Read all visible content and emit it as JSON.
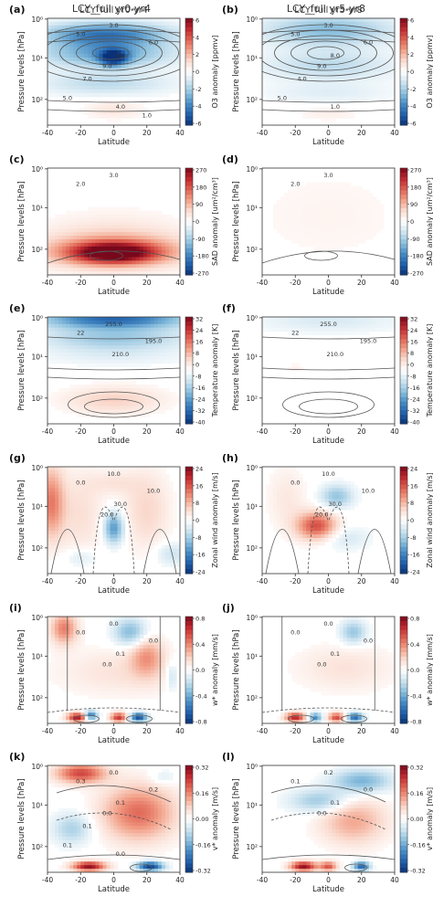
{
  "col_titles": [
    "LCY_full yr0-yr4",
    "LCY_full yr5-yr8"
  ],
  "chart_data": [
    {
      "type": "heatmap",
      "letter": "(a)",
      "title": "LCY_full yr0-yr4",
      "xlabel": "Latitude",
      "ylabel": "Pressure levels [hPa]",
      "xticks": [
        "-40",
        "-20",
        "0",
        "20",
        "40"
      ],
      "yticks": [
        "10⁰",
        "10¹",
        "10²"
      ],
      "cbar_label": "O3 anomaly [ppmv]",
      "cbar_ticks": [
        "6",
        "4",
        "2",
        "0",
        "-2",
        "-4",
        "-6"
      ],
      "cmin": -6,
      "cmax": 6,
      "contour_labels": [
        "3.0",
        "5.0",
        "6.0",
        "8.0",
        "9.0",
        "7.0",
        "5.0",
        "4.0",
        "1.0"
      ],
      "blobs": [
        {
          "x": -5,
          "y": 0.4,
          "rx": 38,
          "ry": 0.3,
          "v": -4
        },
        {
          "x": -5,
          "y": 0.9,
          "rx": 40,
          "ry": 0.35,
          "v": -3
        },
        {
          "x": -5,
          "y": 1.65,
          "rx": 40,
          "ry": 0.3,
          "v": -1.5
        },
        {
          "x": 0,
          "y": 2.3,
          "rx": 18,
          "ry": 0.25,
          "v": 0.8
        },
        {
          "x": 0,
          "y": 1.0,
          "rx": 8,
          "ry": 0.2,
          "v": -5
        }
      ]
    },
    {
      "type": "heatmap",
      "letter": "(b)",
      "title": "LCY_full yr5-yr8",
      "xlabel": "Latitude",
      "ylabel": "Pressure levels [hPa]",
      "xticks": [
        "-40",
        "-20",
        "0",
        "20",
        "40"
      ],
      "yticks": [
        "10⁰",
        "10¹",
        "10²"
      ],
      "cbar_label": "O3 anomaly [ppmv]",
      "cbar_ticks": [
        "6",
        "4",
        "2",
        "0",
        "-2",
        "-4",
        "-6"
      ],
      "cmin": -6,
      "cmax": 6,
      "contour_labels": [
        "3.0",
        "5.0",
        "6.0",
        "8.0",
        "9.0",
        "4.0",
        "5.0",
        "1.0"
      ],
      "blobs": [
        {
          "x": 0,
          "y": 0.3,
          "rx": 40,
          "ry": 0.4,
          "v": -2.5
        },
        {
          "x": 0,
          "y": 1.2,
          "rx": 40,
          "ry": 0.4,
          "v": -1.5
        },
        {
          "x": 0,
          "y": 1.9,
          "rx": 40,
          "ry": 0.25,
          "v": -0.7
        },
        {
          "x": 0,
          "y": 2.4,
          "rx": 20,
          "ry": 0.2,
          "v": 0.5
        }
      ]
    },
    {
      "type": "heatmap",
      "letter": "(c)",
      "title": "",
      "xlabel": "Latitude",
      "ylabel": "Pressure levels [hPa]",
      "xticks": [
        "-40",
        "-20",
        "0",
        "20",
        "40"
      ],
      "yticks": [
        "10⁰",
        "10¹",
        "10²"
      ],
      "cbar_label": "SAD anomaly [um²/cm³]",
      "cbar_ticks": [
        "270",
        "180",
        "90",
        "0",
        "-90",
        "-180",
        "-270"
      ],
      "cmin": -270,
      "cmax": 270,
      "contour_labels": [
        "3.0",
        "2.0"
      ],
      "blobs": [
        {
          "x": 0,
          "y": 1.8,
          "rx": 45,
          "ry": 0.7,
          "v": 40
        },
        {
          "x": 0,
          "y": 2.1,
          "rx": 42,
          "ry": 0.4,
          "v": 120
        },
        {
          "x": 0,
          "y": 2.15,
          "rx": 25,
          "ry": 0.25,
          "v": 220
        }
      ]
    },
    {
      "type": "heatmap",
      "letter": "(d)",
      "title": "",
      "xlabel": "Latitude",
      "ylabel": "Pressure levels [hPa]",
      "xticks": [
        "-40",
        "-20",
        "0",
        "20",
        "40"
      ],
      "yticks": [
        "10⁰",
        "10¹",
        "10²"
      ],
      "cbar_label": "SAD anomaly [um²/cm³]",
      "cbar_ticks": [
        "270",
        "180",
        "90",
        "0",
        "-90",
        "-180",
        "-270"
      ],
      "cmin": -270,
      "cmax": 270,
      "contour_labels": [
        "3.0",
        "2.0"
      ],
      "blobs": [
        {
          "x": 0,
          "y": 1.2,
          "rx": 60,
          "ry": 1.5,
          "v": 15
        }
      ]
    },
    {
      "type": "heatmap",
      "letter": "(e)",
      "title": "",
      "xlabel": "Latitude",
      "ylabel": "Pressure levels [hPa]",
      "xticks": [
        "-40",
        "-20",
        "0",
        "20",
        "40"
      ],
      "yticks": [
        "10⁰",
        "10¹",
        "10²"
      ],
      "cbar_label": "Temperature anomaly [K]",
      "cbar_ticks": [
        "32",
        "24",
        "16",
        "8",
        "0",
        "-8",
        "-16",
        "-24",
        "-32",
        "-40"
      ],
      "cmin": -40,
      "cmax": 32,
      "contour_labels": [
        "255.0",
        "22",
        "195.0",
        "210.0"
      ],
      "blobs": [
        {
          "x": 0,
          "y": 0.05,
          "rx": 45,
          "ry": 0.25,
          "v": -30
        },
        {
          "x": 0,
          "y": 0.55,
          "rx": 45,
          "ry": 0.3,
          "v": -14
        },
        {
          "x": 0,
          "y": 1.0,
          "rx": 45,
          "ry": 0.25,
          "v": -4
        },
        {
          "x": 0,
          "y": 2.1,
          "rx": 30,
          "ry": 0.35,
          "v": 9
        }
      ]
    },
    {
      "type": "heatmap",
      "letter": "(f)",
      "title": "",
      "xlabel": "Latitude",
      "ylabel": "Pressure levels [hPa]",
      "xticks": [
        "-40",
        "-20",
        "0",
        "20",
        "40"
      ],
      "yticks": [
        "10⁰",
        "10¹",
        "10²"
      ],
      "cbar_label": "Temperature anomaly [K]",
      "cbar_ticks": [
        "32",
        "24",
        "16",
        "8",
        "0",
        "-8",
        "-16",
        "-24",
        "-32",
        "-40"
      ],
      "cmin": -40,
      "cmax": 32,
      "contour_labels": [
        "255.0",
        "22",
        "195.0",
        "210.0"
      ],
      "blobs": [
        {
          "x": 0,
          "y": 0.1,
          "rx": 45,
          "ry": 0.3,
          "v": -6
        },
        {
          "x": -20,
          "y": 1.3,
          "rx": 5,
          "ry": 0.12,
          "v": 3
        }
      ]
    },
    {
      "type": "heatmap",
      "letter": "(g)",
      "title": "",
      "xlabel": "Latitude",
      "ylabel": "Pressure levels [hPa]",
      "xticks": [
        "-40",
        "-20",
        "0",
        "20",
        "40"
      ],
      "yticks": [
        "10⁰",
        "10¹",
        "10²"
      ],
      "cbar_label": "Zonal wind anomaly [m/s]",
      "cbar_ticks": [
        "24",
        "16",
        "8",
        "0",
        "-8",
        "-16",
        "-24"
      ],
      "cmin": -24,
      "cmax": 24,
      "contour_labels": [
        "10.0",
        "0.0",
        "10.0",
        "30.0",
        "20.0"
      ],
      "blobs": [
        {
          "x": -38,
          "y": 0.9,
          "rx": 8,
          "ry": 0.9,
          "v": 12
        },
        {
          "x": -20,
          "y": 1.2,
          "rx": 14,
          "ry": 1.1,
          "v": 4
        },
        {
          "x": 0,
          "y": 1.55,
          "rx": 6,
          "ry": 0.4,
          "v": -14
        },
        {
          "x": 20,
          "y": 1.1,
          "rx": 14,
          "ry": 1.0,
          "v": 5
        },
        {
          "x": 35,
          "y": 2.2,
          "rx": 10,
          "ry": 0.3,
          "v": -5
        },
        {
          "x": -20,
          "y": 2.3,
          "rx": 10,
          "ry": 0.25,
          "v": -4
        },
        {
          "x": 0,
          "y": 0.4,
          "rx": 15,
          "ry": 0.3,
          "v": 3
        }
      ]
    },
    {
      "type": "heatmap",
      "letter": "(h)",
      "title": "",
      "xlabel": "Latitude",
      "ylabel": "Pressure levels [hPa]",
      "xticks": [
        "-40",
        "-20",
        "0",
        "20",
        "40"
      ],
      "yticks": [
        "10⁰",
        "10¹",
        "10²"
      ],
      "cbar_label": "Zonal wind anomaly [m/s]",
      "cbar_ticks": [
        "24",
        "16",
        "8",
        "0",
        "-8",
        "-16",
        "-24"
      ],
      "cmin": -24,
      "cmax": 24,
      "contour_labels": [
        "10.0",
        "0.0",
        "10.0",
        "30.0",
        "20.0"
      ],
      "blobs": [
        {
          "x": 5,
          "y": 0.75,
          "rx": 10,
          "ry": 0.3,
          "v": -9
        },
        {
          "x": -7,
          "y": 1.5,
          "rx": 12,
          "ry": 0.35,
          "v": 16
        },
        {
          "x": 10,
          "y": 1.8,
          "rx": 15,
          "ry": 0.3,
          "v": -4
        },
        {
          "x": -25,
          "y": 0.8,
          "rx": 12,
          "ry": 0.8,
          "v": 3
        }
      ]
    },
    {
      "type": "heatmap",
      "letter": "(i)",
      "title": "",
      "xlabel": "Latitude",
      "ylabel": "Pressure levels [hPa]",
      "xticks": [
        "-40",
        "-20",
        "0",
        "20",
        "40"
      ],
      "yticks": [
        "10⁰",
        "10¹",
        "10²"
      ],
      "cbar_label": "w* anomaly [mm/s]",
      "cbar_ticks": [
        "0.8",
        "0.4",
        "0.0",
        "-0.4",
        "-0.8"
      ],
      "cmin": -0.8,
      "cmax": 0.8,
      "contour_labels": [
        "0.0",
        "0.0",
        "0.0",
        "0.1",
        "0.0"
      ],
      "blobs": [
        {
          "x": -30,
          "y": 0.3,
          "rx": 8,
          "ry": 0.4,
          "v": 0.4
        },
        {
          "x": 10,
          "y": 0.4,
          "rx": 10,
          "ry": 0.35,
          "v": -0.35
        },
        {
          "x": 20,
          "y": 1.0,
          "rx": 10,
          "ry": 0.5,
          "v": 0.3
        },
        {
          "x": 5,
          "y": 1.4,
          "rx": 40,
          "ry": 0.6,
          "v": 0.12
        },
        {
          "x": -22,
          "y": 2.55,
          "rx": 6,
          "ry": 0.12,
          "v": 0.7
        },
        {
          "x": -14,
          "y": 2.5,
          "rx": 4,
          "ry": 0.12,
          "v": -0.6
        },
        {
          "x": 3,
          "y": 2.55,
          "rx": 5,
          "ry": 0.12,
          "v": 0.6
        },
        {
          "x": 15,
          "y": 2.55,
          "rx": 5,
          "ry": 0.12,
          "v": -0.7
        },
        {
          "x": 35,
          "y": 1.5,
          "rx": 4,
          "ry": 0.4,
          "v": -0.2
        }
      ]
    },
    {
      "type": "heatmap",
      "letter": "(j)",
      "title": "",
      "xlabel": "Latitude",
      "ylabel": "Pressure levels [hPa]",
      "xticks": [
        "-40",
        "-20",
        "0",
        "20",
        "40"
      ],
      "yticks": [
        "10⁰",
        "10¹",
        "10²"
      ],
      "cbar_label": "w* anomaly [mm/s]",
      "cbar_ticks": [
        "0.8",
        "0.4",
        "0.0",
        "-0.4",
        "-0.8"
      ],
      "cmin": -0.8,
      "cmax": 0.8,
      "contour_labels": [
        "0.0",
        "0.0",
        "0.0",
        "0.1",
        "0.0"
      ],
      "blobs": [
        {
          "x": 15,
          "y": 0.4,
          "rx": 8,
          "ry": 0.3,
          "v": -0.3
        },
        {
          "x": 10,
          "y": 1.3,
          "rx": 30,
          "ry": 0.6,
          "v": 0.12
        },
        {
          "x": -20,
          "y": 2.55,
          "rx": 6,
          "ry": 0.12,
          "v": 0.65
        },
        {
          "x": -8,
          "y": 2.55,
          "rx": 4,
          "ry": 0.12,
          "v": -0.5
        },
        {
          "x": 5,
          "y": 2.55,
          "rx": 5,
          "ry": 0.12,
          "v": 0.55
        },
        {
          "x": 16,
          "y": 2.55,
          "rx": 5,
          "ry": 0.12,
          "v": -0.6
        }
      ]
    },
    {
      "type": "heatmap",
      "letter": "(k)",
      "title": "",
      "xlabel": "Latitude",
      "ylabel": "Pressure levels [hPa]",
      "xticks": [
        "-40",
        "-20",
        "0",
        "20",
        "40"
      ],
      "yticks": [
        "10⁰",
        "10¹",
        "10²"
      ],
      "cbar_label": "v* anomaly [m/s]",
      "cbar_ticks": [
        "0.32",
        "0.16",
        "0.00",
        "-0.16",
        "-0.32"
      ],
      "cmin": -0.32,
      "cmax": 0.32,
      "contour_labels": [
        "0.0",
        "0.3",
        "0.2",
        "0.1",
        "0.0",
        "0.1",
        "0.1",
        "0.0"
      ],
      "blobs": [
        {
          "x": -20,
          "y": 0.2,
          "rx": 15,
          "ry": 0.25,
          "v": 0.22
        },
        {
          "x": 15,
          "y": 1.2,
          "rx": 22,
          "ry": 0.7,
          "v": 0.18
        },
        {
          "x": -25,
          "y": 1.6,
          "rx": 12,
          "ry": 0.4,
          "v": -0.1
        },
        {
          "x": -15,
          "y": 2.55,
          "rx": 10,
          "ry": 0.12,
          "v": 0.3
        },
        {
          "x": 22,
          "y": 2.55,
          "rx": 8,
          "ry": 0.12,
          "v": -0.3
        },
        {
          "x": 30,
          "y": 0.3,
          "rx": 8,
          "ry": 0.2,
          "v": -0.05
        }
      ]
    },
    {
      "type": "heatmap",
      "letter": "(l)",
      "title": "",
      "xlabel": "Latitude",
      "ylabel": "Pressure levels [hPa]",
      "xticks": [
        "-40",
        "-20",
        "0",
        "20",
        "40"
      ],
      "yticks": [
        "10⁰",
        "10¹",
        "10²"
      ],
      "cbar_label": "v* anomaly [m/s]",
      "cbar_ticks": [
        "0.32",
        "0.16",
        "0.00",
        "-0.16",
        "-0.32"
      ],
      "cmin": -0.32,
      "cmax": 0.32,
      "contour_labels": [
        "0.2",
        "0.1",
        "0.0",
        "0.1",
        "0.0"
      ],
      "blobs": [
        {
          "x": 20,
          "y": 0.4,
          "rx": 18,
          "ry": 0.3,
          "v": -0.15
        },
        {
          "x": -5,
          "y": 0.9,
          "rx": 18,
          "ry": 0.3,
          "v": -0.12
        },
        {
          "x": 15,
          "y": 1.4,
          "rx": 20,
          "ry": 0.6,
          "v": 0.12
        },
        {
          "x": -15,
          "y": 2.55,
          "rx": 8,
          "ry": 0.12,
          "v": 0.3
        },
        {
          "x": 0,
          "y": 2.55,
          "rx": 5,
          "ry": 0.12,
          "v": 0.2
        },
        {
          "x": 20,
          "y": 2.55,
          "rx": 5,
          "ry": 0.12,
          "v": -0.25
        }
      ]
    }
  ]
}
